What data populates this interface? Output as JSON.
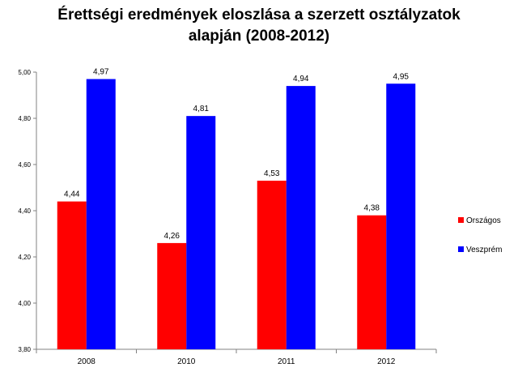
{
  "chart_data": {
    "type": "bar",
    "title_line1": "Érettségi eredmények eloszlása a szerzett osztályzatok",
    "title_line2": "alapján (2008-2012)",
    "categories": [
      "2008",
      "2010",
      "2011",
      "2012"
    ],
    "series": [
      {
        "name": "Országos",
        "color": "#ff0000",
        "values": [
          4.44,
          4.26,
          4.53,
          4.38
        ],
        "labels": [
          "4,44",
          "4,26",
          "4,53",
          "4,38"
        ]
      },
      {
        "name": "Veszprém",
        "color": "#0000ff",
        "values": [
          4.97,
          4.81,
          4.94,
          4.95
        ],
        "labels": [
          "4,97",
          "4,81",
          "4,94",
          "4,95"
        ]
      }
    ],
    "ylim": [
      3.8,
      5.0
    ],
    "yticks": [
      3.8,
      4.0,
      4.2,
      4.4,
      4.6,
      4.8,
      5.0
    ],
    "ytick_labels": [
      "3,80",
      "4,00",
      "4,20",
      "4,40",
      "4,60",
      "4,80",
      "5,00"
    ],
    "grid": false,
    "legend": "right"
  }
}
